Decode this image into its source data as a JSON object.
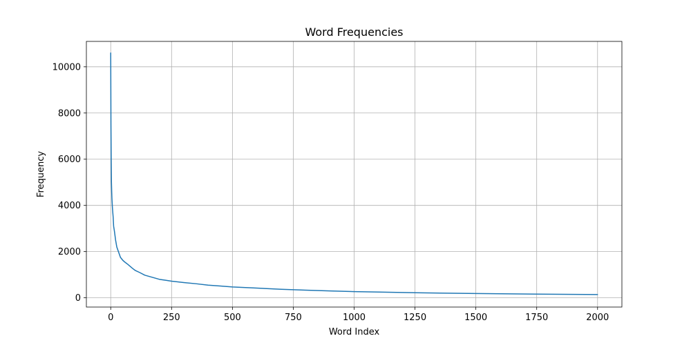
{
  "chart_data": {
    "type": "line",
    "title": "Word Frequencies",
    "xlabel": "Word Index",
    "ylabel": "Frequency",
    "xlim": [
      -100,
      2100
    ],
    "ylim": [
      -400,
      11100
    ],
    "xticks": [
      0,
      250,
      500,
      750,
      1000,
      1250,
      1500,
      1750,
      2000
    ],
    "yticks": [
      0,
      2000,
      4000,
      6000,
      8000,
      10000
    ],
    "grid": true,
    "legend": "none",
    "series": [
      {
        "color": "#1f77b4",
        "points": [
          [
            0,
            10600
          ],
          [
            1,
            7500
          ],
          [
            2,
            6000
          ],
          [
            3,
            5000
          ],
          [
            4,
            4600
          ],
          [
            5,
            4300
          ],
          [
            7,
            3900
          ],
          [
            10,
            3500
          ],
          [
            12,
            3100
          ],
          [
            15,
            2900
          ],
          [
            20,
            2500
          ],
          [
            25,
            2200
          ],
          [
            30,
            2050
          ],
          [
            35,
            1900
          ],
          [
            40,
            1750
          ],
          [
            50,
            1620
          ],
          [
            60,
            1530
          ],
          [
            70,
            1450
          ],
          [
            80,
            1360
          ],
          [
            90,
            1270
          ],
          [
            100,
            1190
          ],
          [
            120,
            1090
          ],
          [
            140,
            980
          ],
          [
            160,
            920
          ],
          [
            180,
            860
          ],
          [
            200,
            800
          ],
          [
            225,
            760
          ],
          [
            250,
            720
          ],
          [
            300,
            660
          ],
          [
            350,
            610
          ],
          [
            400,
            550
          ],
          [
            450,
            510
          ],
          [
            500,
            470
          ],
          [
            600,
            420
          ],
          [
            700,
            370
          ],
          [
            800,
            330
          ],
          [
            900,
            300
          ],
          [
            1000,
            270
          ],
          [
            1100,
            250
          ],
          [
            1250,
            220
          ],
          [
            1500,
            185
          ],
          [
            1750,
            160
          ],
          [
            2000,
            140
          ]
        ]
      }
    ]
  }
}
